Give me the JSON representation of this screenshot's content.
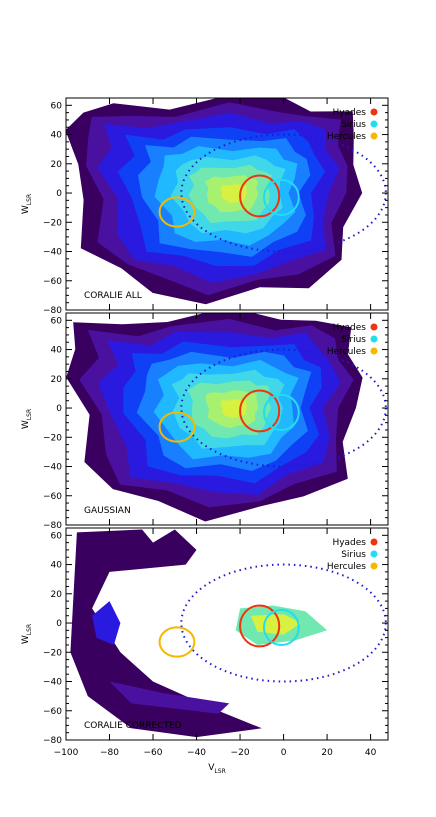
{
  "chart_data": {
    "type": "contour",
    "x_axis": {
      "label_main": "V",
      "label_sub": "LSR",
      "range": [
        -100,
        48
      ],
      "ticks": [
        -100,
        -80,
        -60,
        -40,
        -20,
        0,
        20,
        40
      ],
      "tick_labels": [
        "−100",
        "−80",
        "−60",
        "−40",
        "−20",
        "0",
        "20",
        "40"
      ]
    },
    "y_axis": {
      "label_main": "W",
      "label_sub": "LSR",
      "range": [
        -80,
        65
      ],
      "ticks": [
        -80,
        -60,
        -40,
        -20,
        0,
        20,
        40,
        60
      ],
      "tick_labels": [
        "−80",
        "−60",
        "−40",
        "−20",
        "0",
        "20",
        "40",
        "60"
      ]
    },
    "legend": {
      "placement": "top-right",
      "entries": [
        {
          "label": "Hyades",
          "color": "#ee3311"
        },
        {
          "label": "Sirius",
          "color": "#22ddee"
        },
        {
          "label": "Hercules",
          "color": "#f5b800"
        }
      ]
    },
    "dotted_ellipse": {
      "cx": 0,
      "cy": 0,
      "rx": 47,
      "ry": 40,
      "color": "#1a1ad0"
    },
    "color_levels": [
      "#3a0060",
      "#4a10a0",
      "#2a1adf",
      "#1040f5",
      "#1880ff",
      "#20b8ff",
      "#40d8e8",
      "#70e8b0",
      "#a8f070",
      "#d8f040"
    ],
    "panels": [
      {
        "label": "CORALIE ALL",
        "circles": [
          {
            "name": "Hyades",
            "cx": -11,
            "cy": -2,
            "rx": 9,
            "ry": 14,
            "color": "#ee3311"
          },
          {
            "name": "Sirius",
            "cx": -1,
            "cy": -3,
            "rx": 8,
            "ry": 12,
            "color": "#22ddee"
          },
          {
            "name": "Hercules",
            "cx": -49,
            "cy": -13,
            "rx": 8,
            "ry": 10,
            "color": "#f5b800"
          }
        ]
      },
      {
        "label": "GAUSSIAN",
        "circles": [
          {
            "name": "Hyades",
            "cx": -11,
            "cy": -2,
            "rx": 9,
            "ry": 14,
            "color": "#ee3311"
          },
          {
            "name": "Sirius",
            "cx": -1,
            "cy": -3,
            "rx": 8,
            "ry": 12,
            "color": "#22ddee"
          },
          {
            "name": "Hercules",
            "cx": -49,
            "cy": -13,
            "rx": 8,
            "ry": 10,
            "color": "#f5b800"
          }
        ]
      },
      {
        "label": "CORALIE CORRECTED",
        "circles": [
          {
            "name": "Hyades",
            "cx": -11,
            "cy": -2,
            "rx": 9,
            "ry": 14,
            "color": "#ee3311"
          },
          {
            "name": "Sirius",
            "cx": -1,
            "cy": -3,
            "rx": 8,
            "ry": 12,
            "color": "#22ddee"
          },
          {
            "name": "Hercules",
            "cx": -49,
            "cy": -13,
            "rx": 8,
            "ry": 10,
            "color": "#f5b800"
          }
        ]
      }
    ]
  }
}
